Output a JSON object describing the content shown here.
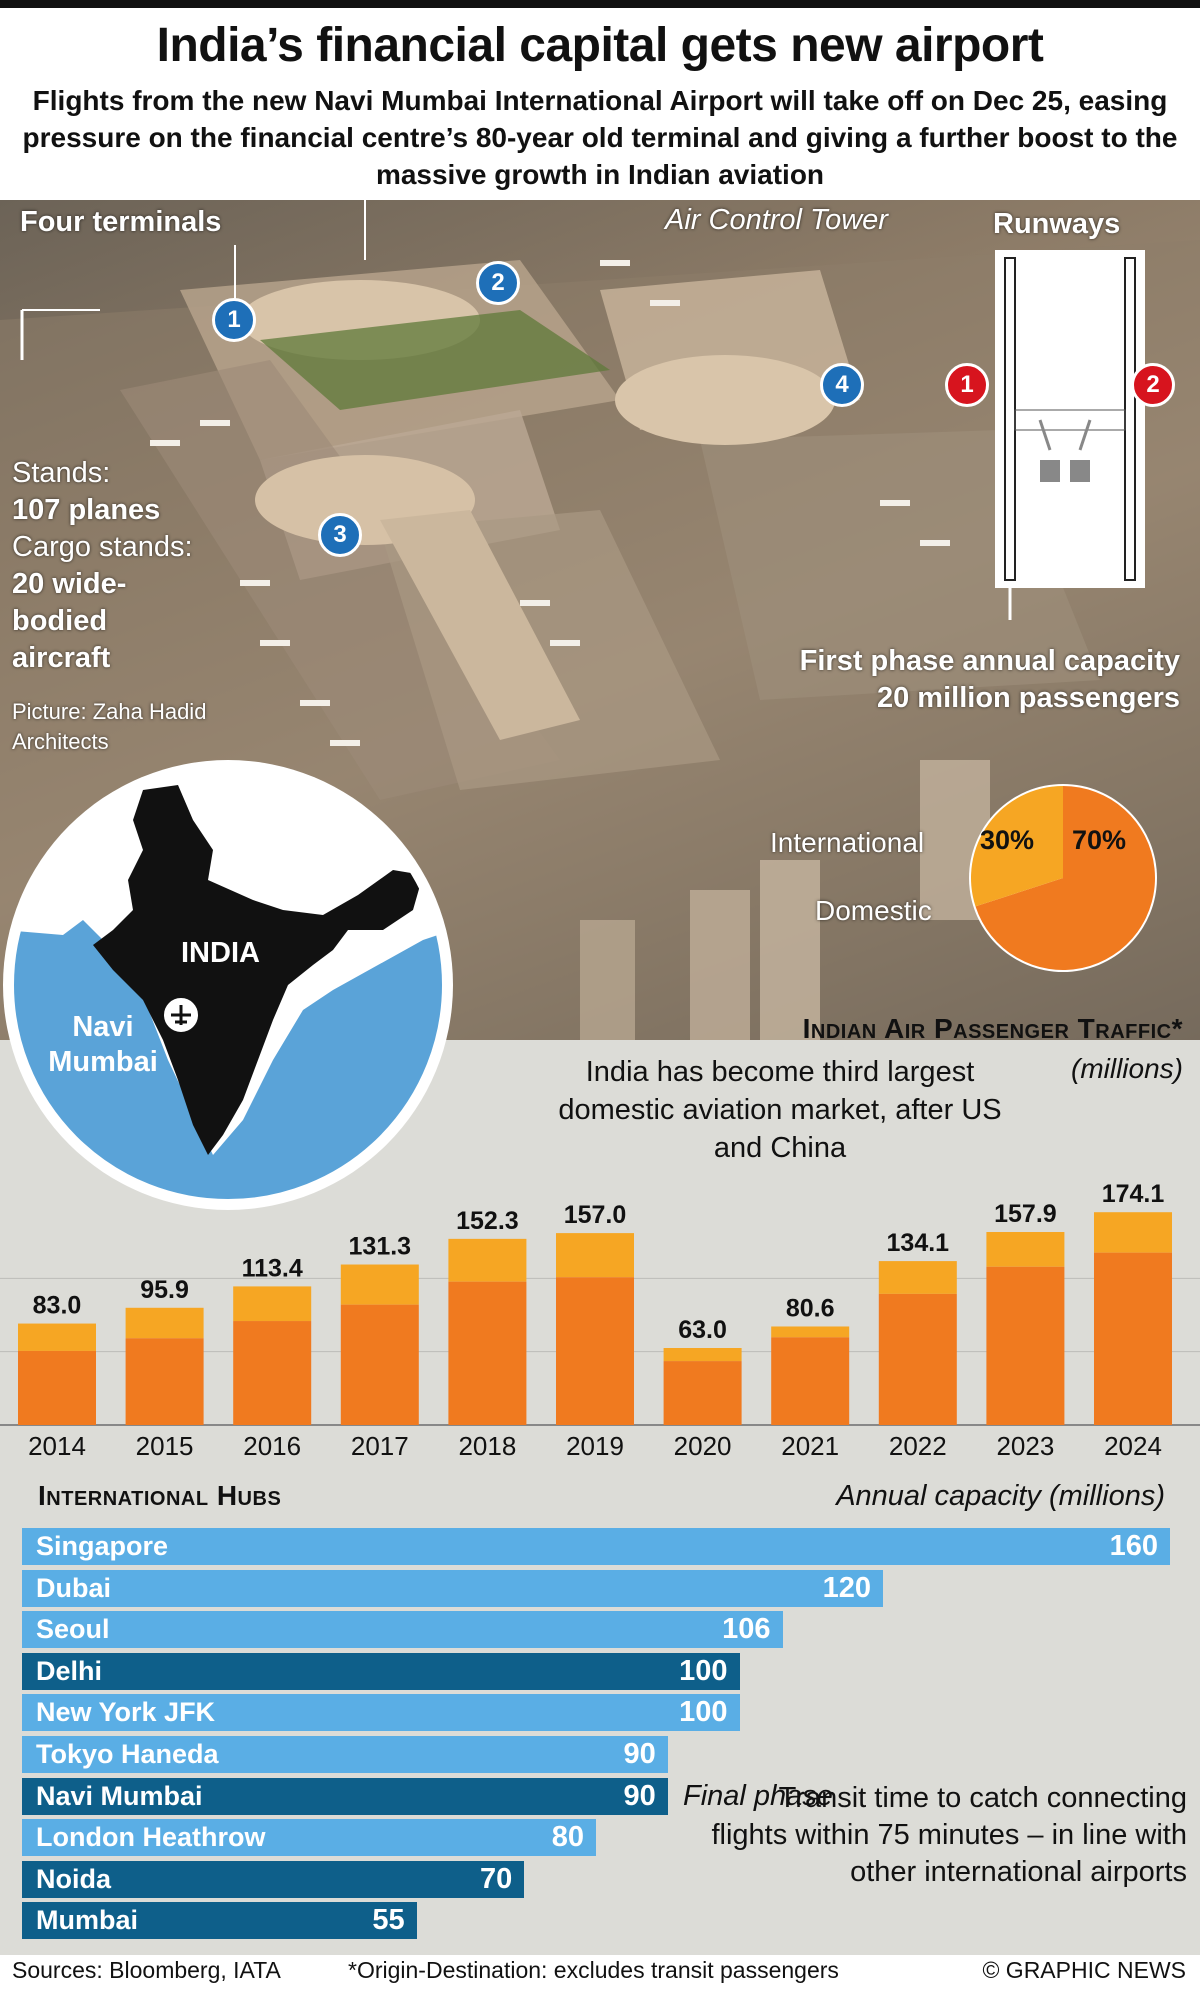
{
  "header": {
    "title": "India’s financial capital gets new airport",
    "subtitle": "Flights from the new Navi Mumbai International Airport will take off on Dec 25, easing pressure on the financial centre’s 80-year old terminal and giving a further boost to the massive growth in Indian aviation"
  },
  "photo": {
    "four_terminals": "Four terminals",
    "air_control_tower": "Air Control Tower",
    "runways": "Runways",
    "terminal_markers": [
      "1",
      "2",
      "3",
      "4"
    ],
    "runway_markers": [
      "1",
      "2"
    ],
    "stands_label": "Stands:",
    "stands_value": "107 planes",
    "cargo_label": "Cargo stands:",
    "cargo_value": "20 wide-bodied aircraft",
    "credit": "Picture: Zaha Hadid Architects",
    "first_phase": "First phase annual capacity 20 million passengers"
  },
  "map": {
    "country": "INDIA",
    "city": "Navi Mumbai",
    "colors": {
      "sea": "#5aa3d8",
      "land": "#111111"
    }
  },
  "pie": {
    "international_label": "International",
    "domestic_label": "Domestic",
    "international_pct": "30%",
    "domestic_pct": "70%",
    "colors": {
      "international": "#f6a623",
      "domestic": "#f07a1f"
    }
  },
  "traffic": {
    "heading": "Indian Air Passenger Traffic*",
    "units": "(millions)",
    "note": "India has become third largest domestic aviation market, after US and China"
  },
  "hubs": {
    "heading": "International Hubs",
    "units": "Annual capacity (millions)",
    "final_phase": "Final phase",
    "transit_note": "Transit time to catch connecting flights within 75 minutes – in line with other international airports"
  },
  "footer": {
    "sources": "Sources: Bloomberg, IATA",
    "footnote": "*Origin-Destination: excludes transit passengers",
    "credit": "© GRAPHIC NEWS"
  },
  "chart_data": [
    {
      "type": "bar",
      "title": "Indian Air Passenger Traffic*",
      "ylabel": "(millions)",
      "categories": [
        "2014",
        "2015",
        "2016",
        "2017",
        "2018",
        "2019",
        "2020",
        "2021",
        "2022",
        "2023",
        "2024"
      ],
      "values": [
        83.0,
        95.9,
        113.4,
        131.3,
        152.3,
        157.0,
        63.0,
        80.6,
        134.1,
        157.9,
        174.1
      ],
      "value_labels": [
        "83.0",
        "95.9",
        "113.4",
        "131.3",
        "152.3",
        "157.0",
        "63.0",
        "80.6",
        "134.1",
        "157.9",
        "174.1"
      ],
      "domestic_share": [
        0.73,
        0.74,
        0.75,
        0.75,
        0.77,
        0.77,
        0.83,
        0.89,
        0.8,
        0.82,
        0.81
      ],
      "ylim": [
        0,
        180
      ],
      "colors": {
        "domestic": "#f07a1f",
        "international": "#f6a623"
      },
      "grid": true
    },
    {
      "type": "bar",
      "orientation": "horizontal",
      "title": "International Hubs",
      "xlabel": "Annual capacity (millions)",
      "categories": [
        "Singapore",
        "Dubai",
        "Seoul",
        "Delhi",
        "New York JFK",
        "Tokyo Haneda",
        "Navi Mumbai",
        "London Heathrow",
        "Noida",
        "Mumbai"
      ],
      "values": [
        160,
        120,
        106,
        100,
        100,
        90,
        90,
        80,
        70,
        55
      ],
      "indian": [
        false,
        false,
        false,
        true,
        false,
        false,
        true,
        false,
        true,
        true
      ],
      "xlim": [
        0,
        160
      ],
      "colors": {
        "international": "#5aaee5",
        "indian": "#0e5f8a"
      }
    }
  ]
}
